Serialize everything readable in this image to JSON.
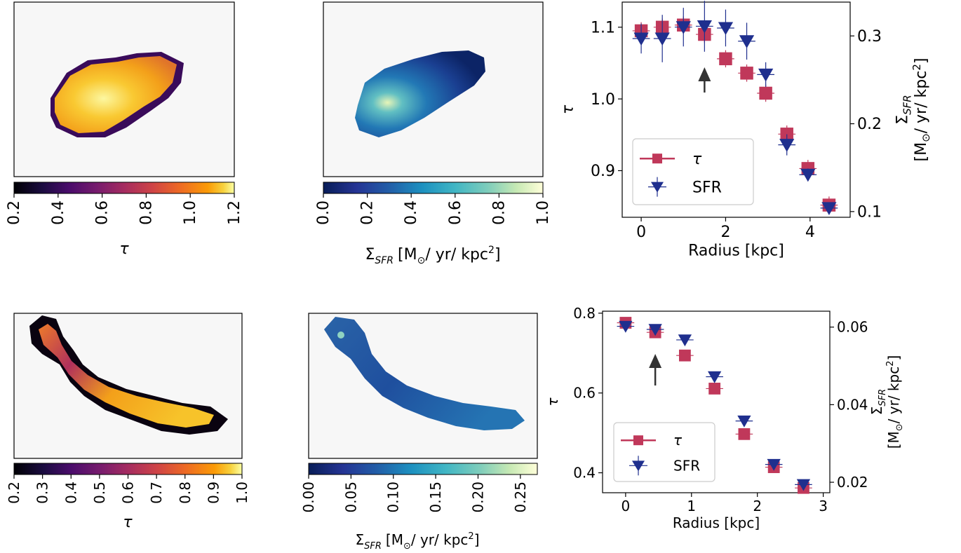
{
  "colors": {
    "tau": "#c0385a",
    "sfr": "#1f2f8e",
    "map_bg": "#f7f7f7",
    "arrow": "#333333"
  },
  "chart_data": [
    {
      "type": "heatmap",
      "panel": "top-left map",
      "colormap": "inferno",
      "colorbar": {
        "label": "τ",
        "range": [
          0.2,
          1.2
        ],
        "ticks": [
          "0.2",
          "0.4",
          "0.6",
          "0.8",
          "1.0",
          "1.2"
        ]
      }
    },
    {
      "type": "heatmap",
      "panel": "top-middle map",
      "colormap": "YlGnBu_r",
      "colorbar": {
        "label": "Σ",
        "label_sub": "SFR",
        "label_unit": "[M",
        "label_unit2": "/ yr/ kpc",
        "range": [
          0.0,
          1.0
        ],
        "ticks": [
          "0.0",
          "0.2",
          "0.4",
          "0.6",
          "0.8",
          "1.0"
        ]
      }
    },
    {
      "type": "scatter",
      "panel": "top-right profile",
      "xlabel": "Radius [kpc]",
      "ylabel": "τ",
      "y2label_sym": "Σ",
      "y2label_sub": "SFR",
      "y2label_unit": "[M",
      "y2label_unit2": "/ yr/ kpc",
      "xlim": [
        -0.45,
        4.95
      ],
      "ylim": [
        0.835,
        1.135
      ],
      "y2lim": [
        0.0935,
        0.3385
      ],
      "xticks": [
        0,
        2,
        4
      ],
      "yticks": [
        0.9,
        1.0,
        1.1
      ],
      "y2ticks": [
        0.1,
        0.2,
        0.3
      ],
      "legend": {
        "placement": "lower-left",
        "entries": [
          "τ",
          "SFR"
        ]
      },
      "arrow_at": 1.5,
      "series": [
        {
          "name": "τ",
          "x": [
            0.0,
            0.5,
            1.0,
            1.5,
            2.0,
            2.5,
            2.95,
            3.45,
            3.95,
            4.45
          ],
          "y": [
            1.095,
            1.1,
            1.103,
            1.09,
            1.056,
            1.036,
            1.008,
            0.951,
            0.903,
            0.852
          ],
          "yerr": [
            0.012,
            0.012,
            0.012,
            0.012,
            0.012,
            0.012,
            0.012,
            0.012,
            0.012,
            0.012
          ]
        },
        {
          "name": "SFR",
          "x": [
            0.0,
            0.5,
            1.0,
            1.5,
            2.0,
            2.5,
            2.95,
            3.45,
            3.95,
            4.45
          ],
          "y": [
            0.297,
            0.297,
            0.31,
            0.311,
            0.309,
            0.294,
            0.256,
            0.176,
            0.142,
            0.104
          ],
          "yerr": [
            0.017,
            0.027,
            0.022,
            0.029,
            0.021,
            0.021,
            0.014,
            0.012,
            0.007,
            0.005
          ]
        }
      ]
    },
    {
      "type": "heatmap",
      "panel": "bottom-left map",
      "colormap": "inferno",
      "colorbar": {
        "label": "τ",
        "range": [
          0.2,
          1.0
        ],
        "ticks": [
          "0.2",
          "0.3",
          "0.4",
          "0.5",
          "0.6",
          "0.7",
          "0.8",
          "0.9",
          "1.0"
        ]
      }
    },
    {
      "type": "heatmap",
      "panel": "bottom-middle map",
      "colormap": "YlGnBu_r",
      "colorbar": {
        "label": "Σ",
        "label_sub": "SFR",
        "label_unit": "[M",
        "label_unit2": "/ yr/ kpc",
        "range": [
          0.0,
          0.27
        ],
        "ticks": [
          "0.00",
          "0.05",
          "0.10",
          "0.15",
          "0.20",
          "0.25"
        ]
      }
    },
    {
      "type": "scatter",
      "panel": "bottom-right profile",
      "xlabel": "Radius [kpc]",
      "ylabel": "τ",
      "y2label_sym": "Σ",
      "y2label_sub": "SFR",
      "y2label_unit": "[M",
      "y2label_unit2": "/ yr/ kpc",
      "xlim": [
        -0.35,
        3.1
      ],
      "ylim": [
        0.35,
        0.805
      ],
      "y2lim": [
        0.0173,
        0.0641
      ],
      "xticks": [
        0,
        1,
        2,
        3
      ],
      "yticks": [
        0.4,
        0.6,
        0.8
      ],
      "y2ticks": [
        0.02,
        0.04,
        0.06
      ],
      "legend": {
        "placement": "lower-left",
        "entries": [
          "τ",
          "SFR"
        ]
      },
      "arrow_at": 0.45,
      "series": [
        {
          "name": "τ",
          "x": [
            0.0,
            0.45,
            0.9,
            1.35,
            1.8,
            2.25,
            2.7
          ],
          "y": [
            0.776,
            0.752,
            0.694,
            0.611,
            0.497,
            0.414,
            0.362
          ],
          "yerr": [
            0.006,
            0.006,
            0.006,
            0.005,
            0.005,
            0.005,
            0.004
          ]
        },
        {
          "name": "SFR",
          "x": [
            0.0,
            0.45,
            0.9,
            1.35,
            1.8,
            2.25,
            2.7
          ],
          "y": [
            0.0602,
            0.0594,
            0.0567,
            0.0472,
            0.0358,
            0.0246,
            0.0194
          ],
          "yerr": [
            0.0012,
            0.001,
            0.0008,
            0.0005,
            0.0004,
            0.0003,
            0.0002
          ]
        }
      ]
    }
  ]
}
